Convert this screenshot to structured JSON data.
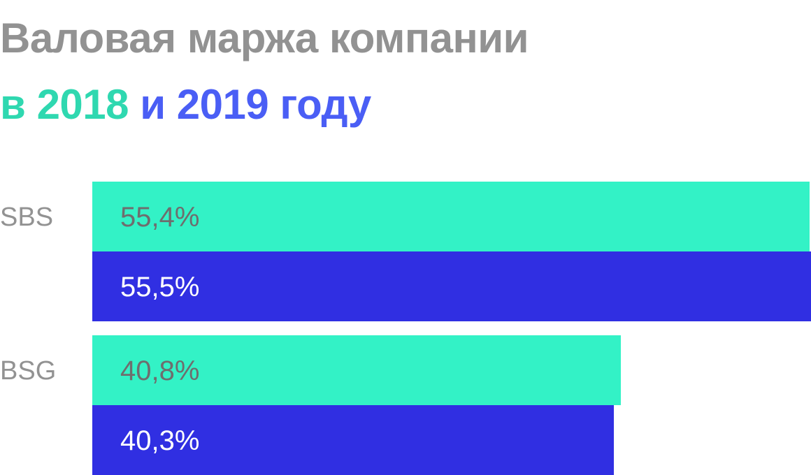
{
  "title": {
    "line1": "Валовая маржа компании",
    "line2_prefix": "в ",
    "line2_year1": "2018",
    "line2_and": " и ",
    "line2_year2": "2019",
    "line2_suffix": " году"
  },
  "colors": {
    "title": "#929292",
    "year_2018": "#2fd8b0",
    "year_2019": "#4a5ef5",
    "bar_2018": "#33f2c6",
    "bar_2019": "#302fe2",
    "category_label": "#929292",
    "value_label_on_2018": "#6e6e6e",
    "value_label_on_2019": "#ffffff"
  },
  "chart_data": {
    "type": "bar",
    "orientation": "horizontal",
    "categories": [
      "SBS",
      "BSG"
    ],
    "series": [
      {
        "name": "2018",
        "values": [
          55.4,
          40.8
        ],
        "labels": [
          "55,4%",
          "40,8%"
        ]
      },
      {
        "name": "2019",
        "values": [
          55.5,
          40.3
        ],
        "labels": [
          "55,5%",
          "40,3%"
        ]
      }
    ],
    "xlim": [
      0,
      55.5
    ],
    "grid": false,
    "legend": "none"
  }
}
